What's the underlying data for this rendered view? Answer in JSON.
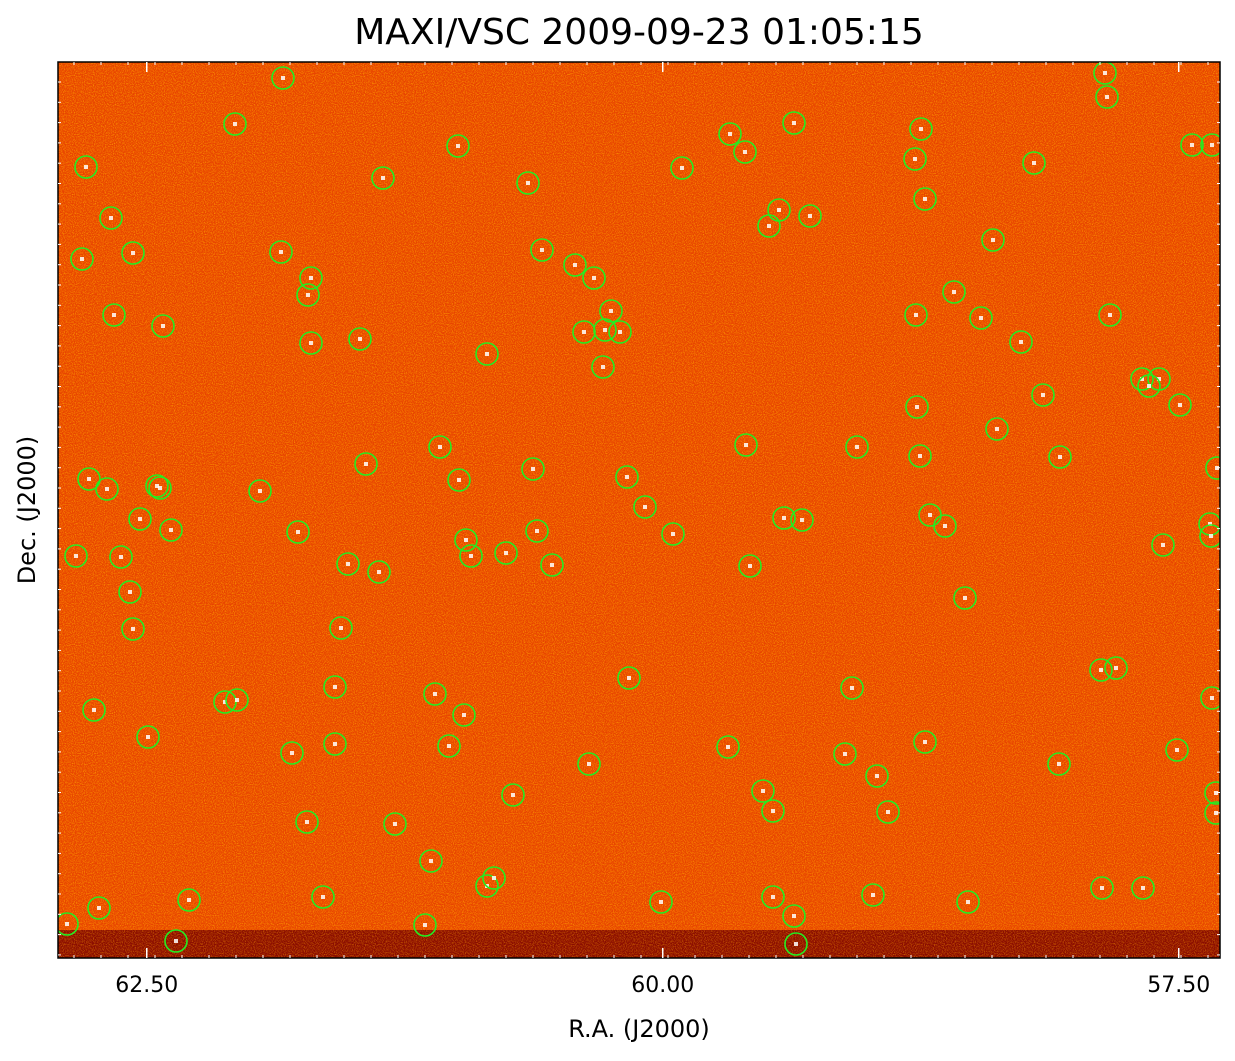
{
  "chart_data": {
    "type": "image",
    "title": "MAXI/VSC 2009-09-23 01:05:15",
    "x_label": "R.A. (J2000)",
    "y_label": "Dec. (J2000)",
    "xlim": [
      62.93,
      57.3
    ],
    "xticks": [
      {
        "value": 62.5,
        "label": "62.50"
      },
      {
        "value": 60.0,
        "label": "60.00"
      },
      {
        "value": 57.5,
        "label": "57.50"
      }
    ],
    "marker_color": "#22ee22"
  }
}
